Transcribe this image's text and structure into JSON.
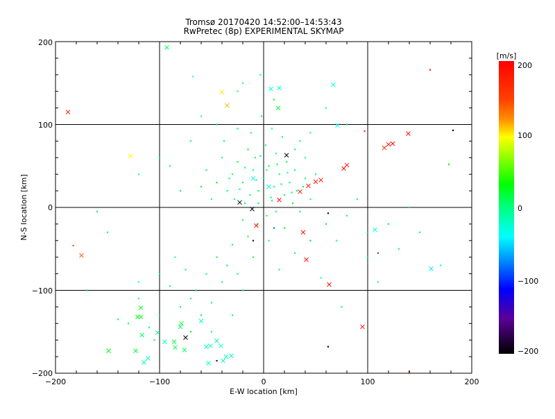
{
  "chart_data": {
    "type": "scatter",
    "title": "Tromsø 20170420 14:52:00–14:53:43",
    "subtitle": "RwPretec (8p) EXPERIMENTAL SKYMAP",
    "xlabel": "E-W location [km]",
    "ylabel": "N-S location [km]",
    "xlim": [
      -200,
      200
    ],
    "ylim": [
      -200,
      200
    ],
    "xticks": [
      "−200",
      "−100",
      "0",
      "100",
      "200"
    ],
    "yticks": [
      "−200",
      "−100",
      "0",
      "100",
      "200"
    ],
    "grid": true,
    "colorbar": {
      "label": "[m/s]",
      "range": [
        -200,
        200
      ],
      "ticks": [
        "200",
        "100",
        "0",
        "−100",
        "−200"
      ],
      "colormap": [
        "#ff0000",
        "#ff8c00",
        "#ffff00",
        "#00ff00",
        "#00ff80",
        "#00ffff",
        "#0000ff",
        "#5a0096",
        "#000000"
      ]
    },
    "point_format": [
      "x_km",
      "y_km",
      "velocity_m_s"
    ],
    "crosses": [
      [
        -188,
        115,
        190
      ],
      [
        -128,
        62,
        95
      ],
      [
        -175,
        -58,
        140
      ],
      [
        -93,
        193,
        10
      ],
      [
        -40,
        139,
        100
      ],
      [
        -35,
        123,
        110
      ],
      [
        7,
        143,
        -30
      ],
      [
        15,
        144,
        -20
      ],
      [
        14,
        120,
        20
      ],
      [
        67,
        148,
        -30
      ],
      [
        22,
        63,
        -200
      ],
      [
        -23,
        6,
        -200
      ],
      [
        -11,
        -2,
        -190
      ],
      [
        -7,
        -22,
        190
      ],
      [
        15,
        9,
        190
      ],
      [
        35,
        19,
        190
      ],
      [
        43,
        26,
        190
      ],
      [
        50,
        31,
        190
      ],
      [
        55,
        33,
        190
      ],
      [
        77,
        47,
        190
      ],
      [
        80,
        51,
        190
      ],
      [
        116,
        72,
        160
      ],
      [
        120,
        76,
        190
      ],
      [
        124,
        77,
        190
      ],
      [
        139,
        89,
        190
      ],
      [
        38,
        -30,
        190
      ],
      [
        41,
        -63,
        190
      ],
      [
        63,
        -93,
        190
      ],
      [
        95,
        -144,
        190
      ],
      [
        107,
        -27,
        -30
      ],
      [
        161,
        -74,
        -50
      ],
      [
        -75,
        -157,
        -200
      ],
      [
        -118,
        -132,
        20
      ],
      [
        -121,
        -132,
        30
      ],
      [
        -118,
        -121,
        20
      ],
      [
        -117,
        -154,
        10
      ],
      [
        -123,
        -173,
        20
      ],
      [
        -115,
        -187,
        -10
      ],
      [
        -111,
        -182,
        -20
      ],
      [
        -149,
        -173,
        30
      ],
      [
        -102,
        -151,
        -10
      ],
      [
        -95,
        -162,
        -20
      ],
      [
        -86,
        -162,
        20
      ],
      [
        -85,
        -169,
        10
      ],
      [
        -79,
        -140,
        20
      ],
      [
        -80,
        -144,
        10
      ],
      [
        -76,
        -172,
        10
      ],
      [
        -60,
        -137,
        -20
      ],
      [
        -55,
        -168,
        -30
      ],
      [
        -51,
        -167,
        -20
      ],
      [
        -45,
        -161,
        -10
      ],
      [
        -41,
        -167,
        -30
      ],
      [
        -36,
        -180,
        -20
      ],
      [
        -53,
        -188,
        -30
      ],
      [
        -39,
        -185,
        -10
      ],
      [
        -31,
        -179,
        -20
      ],
      [
        71,
        99,
        -40
      ],
      [
        -10,
        35,
        -20
      ],
      [
        5,
        25,
        -30
      ]
    ],
    "dots": [
      [
        -30,
        40,
        10
      ],
      [
        -25,
        55,
        15
      ],
      [
        -20,
        30,
        5
      ],
      [
        -15,
        70,
        20
      ],
      [
        -10,
        45,
        0
      ],
      [
        -5,
        20,
        10
      ],
      [
        0,
        35,
        5
      ],
      [
        5,
        50,
        15
      ],
      [
        10,
        25,
        -5
      ],
      [
        15,
        40,
        10
      ],
      [
        20,
        15,
        20
      ],
      [
        25,
        30,
        0
      ],
      [
        30,
        45,
        10
      ],
      [
        -35,
        20,
        5
      ],
      [
        -28,
        10,
        -10
      ],
      [
        -18,
        5,
        15
      ],
      [
        -8,
        60,
        10
      ],
      [
        2,
        75,
        5
      ],
      [
        12,
        65,
        -10
      ],
      [
        22,
        55,
        15
      ],
      [
        32,
        20,
        10
      ],
      [
        40,
        35,
        5
      ],
      [
        -40,
        60,
        0
      ],
      [
        -45,
        30,
        20
      ],
      [
        -12,
        90,
        5
      ],
      [
        8,
        95,
        -15
      ],
      [
        -2,
        110,
        10
      ],
      [
        3,
        -10,
        20
      ],
      [
        -6,
        -20,
        5
      ],
      [
        12,
        -5,
        -10
      ],
      [
        -20,
        -15,
        15
      ],
      [
        28,
        5,
        25
      ],
      [
        35,
        -5,
        10
      ],
      [
        45,
        10,
        5
      ],
      [
        50,
        40,
        15
      ],
      [
        -50,
        10,
        -5
      ],
      [
        -55,
        45,
        10
      ],
      [
        -60,
        25,
        20
      ],
      [
        -38,
        80,
        15
      ],
      [
        18,
        85,
        10
      ],
      [
        30,
        70,
        5
      ],
      [
        -25,
        95,
        0
      ],
      [
        40,
        60,
        -5
      ],
      [
        -15,
        -35,
        10
      ],
      [
        5,
        -40,
        0
      ],
      [
        20,
        -25,
        15
      ],
      [
        -30,
        -45,
        5
      ],
      [
        -45,
        -60,
        20
      ],
      [
        -55,
        -80,
        10
      ],
      [
        -65,
        -100,
        15
      ],
      [
        -70,
        -110,
        5
      ],
      [
        -80,
        -120,
        10
      ],
      [
        -90,
        -95,
        0
      ],
      [
        -100,
        -130,
        15
      ],
      [
        -110,
        -145,
        5
      ],
      [
        -60,
        -130,
        20
      ],
      [
        -50,
        -115,
        10
      ],
      [
        -40,
        -90,
        5
      ],
      [
        -35,
        -70,
        15
      ],
      [
        -75,
        -75,
        10
      ],
      [
        -85,
        -60,
        -10
      ],
      [
        -100,
        -80,
        5
      ],
      [
        -120,
        -110,
        10
      ],
      [
        -130,
        -140,
        20
      ],
      [
        -105,
        -160,
        5
      ],
      [
        -70,
        -150,
        15
      ],
      [
        -50,
        -150,
        0
      ],
      [
        -30,
        -130,
        10
      ],
      [
        -20,
        -100,
        5
      ],
      [
        60,
        -20,
        10
      ],
      [
        70,
        -40,
        -5
      ],
      [
        80,
        -10,
        15
      ],
      [
        90,
        10,
        5
      ],
      [
        100,
        -60,
        -10
      ],
      [
        110,
        -90,
        5
      ],
      [
        120,
        -20,
        10
      ],
      [
        130,
        -50,
        0
      ],
      [
        150,
        -30,
        5
      ],
      [
        170,
        -70,
        -20
      ],
      [
        140,
        0,
        10
      ],
      [
        -80,
        20,
        10
      ],
      [
        -90,
        50,
        5
      ],
      [
        -70,
        80,
        0
      ],
      [
        -100,
        60,
        15
      ],
      [
        -60,
        110,
        -20
      ],
      [
        -20,
        150,
        0
      ],
      [
        10,
        130,
        20
      ],
      [
        -150,
        -30,
        10
      ],
      [
        -170,
        -100,
        15
      ],
      [
        -140,
        -135,
        10
      ],
      [
        -120,
        -90,
        -20
      ],
      [
        60,
        120,
        -30
      ],
      [
        80,
        100,
        5
      ],
      [
        160,
        166,
        190
      ],
      [
        182,
        93,
        -200
      ],
      [
        -68,
        158,
        -40
      ],
      [
        -3,
        160,
        0
      ],
      [
        30,
        -55,
        10
      ],
      [
        55,
        -85,
        -20
      ],
      [
        75,
        -120,
        10
      ],
      [
        100,
        -30,
        5
      ],
      [
        -10,
        -60,
        20
      ],
      [
        15,
        -75,
        5
      ],
      [
        -25,
        -80,
        10
      ],
      [
        35,
        80,
        5
      ],
      [
        45,
        90,
        10
      ],
      [
        -45,
        100,
        15
      ],
      [
        -5,
        5,
        10
      ],
      [
        7,
        12,
        0
      ],
      [
        17,
        28,
        5
      ],
      [
        -13,
        15,
        20
      ],
      [
        3,
        45,
        10
      ],
      [
        -7,
        33,
        -5
      ],
      [
        13,
        52,
        15
      ],
      [
        23,
        42,
        0
      ],
      [
        -18,
        48,
        10
      ],
      [
        -3,
        62,
        5
      ],
      [
        8,
        8,
        15
      ],
      [
        -23,
        22,
        0
      ],
      [
        27,
        18,
        10
      ],
      [
        -33,
        35,
        15
      ],
      [
        38,
        25,
        5
      ],
      [
        -183,
        -46,
        140
      ],
      [
        178,
        52,
        30
      ],
      [
        97,
        92,
        190
      ],
      [
        140,
        -198,
        190
      ],
      [
        62,
        -7,
        -200
      ],
      [
        62,
        -168,
        -200
      ],
      [
        -45,
        -185,
        -200
      ],
      [
        -10,
        -40,
        -200
      ],
      [
        -120,
        40,
        -20
      ],
      [
        -160,
        -5,
        5
      ],
      [
        -25,
        140,
        -10
      ],
      [
        45,
        -40,
        -60
      ],
      [
        10,
        -25,
        -80
      ],
      [
        110,
        -55,
        -90
      ]
    ]
  }
}
